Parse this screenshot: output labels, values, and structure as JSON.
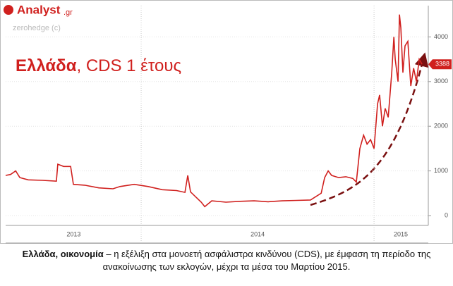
{
  "header": {
    "logo": "Analyst",
    "logo_suffix": ".gr",
    "source": "zerohedge (c)"
  },
  "chart_data": {
    "type": "line",
    "title_bold": "Ελλάδα",
    "title": ", CDS 1 έτους",
    "x": [
      2013.418,
      2013.439,
      2013.461,
      2013.479,
      2013.515,
      2013.576,
      2013.636,
      2013.642,
      2013.667,
      2013.697,
      2013.709,
      2013.758,
      2013.818,
      2013.879,
      2013.909,
      2013.97,
      2014.03,
      2014.091,
      2014.152,
      2014.188,
      2014.2,
      2014.212,
      2014.258,
      2014.273,
      2014.303,
      2014.364,
      2014.424,
      2014.485,
      2014.545,
      2014.606,
      2014.667,
      2014.727,
      2014.773,
      2014.788,
      2014.803,
      2014.818,
      2014.848,
      2014.879,
      2014.909,
      2014.924,
      2014.939,
      2014.955,
      2014.97,
      2014.985,
      2015.0,
      2015.015,
      2015.024,
      2015.036,
      2015.048,
      2015.061,
      2015.076,
      2015.085,
      2015.091,
      2015.103,
      2015.109,
      2015.115,
      2015.124,
      2015.133,
      2015.145,
      2015.158,
      2015.17,
      2015.182,
      2015.194,
      2015.206
    ],
    "series": [
      {
        "name": "CDS 1y",
        "color": "#d0201e",
        "values": [
          900,
          920,
          1000,
          850,
          800,
          790,
          770,
          1150,
          1100,
          1100,
          700,
          680,
          620,
          600,
          650,
          700,
          650,
          580,
          560,
          520,
          900,
          530,
          300,
          200,
          330,
          300,
          320,
          330,
          310,
          330,
          340,
          350,
          500,
          850,
          1000,
          900,
          850,
          870,
          830,
          750,
          1500,
          1800,
          1600,
          1700,
          1500,
          2500,
          2700,
          2000,
          2400,
          2200,
          3200,
          4000,
          3500,
          3000,
          4500,
          4200,
          3200,
          3800,
          3900,
          2900,
          3300,
          3000,
          3500,
          3388
        ]
      }
    ],
    "xlim": [
      2013.418,
      2015.233
    ],
    "xticks": [
      {
        "value": 2013.71,
        "label": "2013"
      },
      {
        "value": 2014.5,
        "label": "2014"
      },
      {
        "value": 2015.115,
        "label": "2015"
      }
    ],
    "xbounds": [
      2014,
      2015
    ],
    "ylim": [
      -220,
      4700
    ],
    "yticks": [
      0,
      1000,
      2000,
      3000,
      4000
    ],
    "grid": true
  },
  "caption": {
    "bold": "Ελλάδα, οικονομία",
    "text": " – η εξέλιξη στα μονοετή ασφάλιστρα κινδύνου (CDS), με έμφαση τη περίοδο της ανακοίνωσης των εκλογών, μέχρι τα μέσα του Μαρτίου 2015."
  }
}
